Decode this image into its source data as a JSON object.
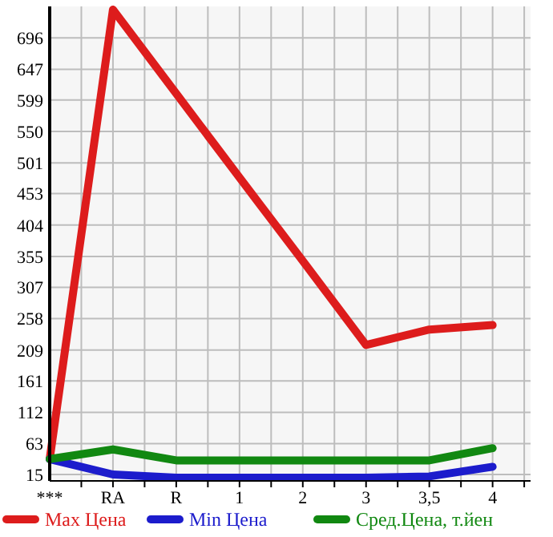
{
  "chart_data": {
    "type": "line",
    "categories": [
      "***",
      "RA",
      "R",
      "1",
      "2",
      "3",
      "3,5",
      "4"
    ],
    "series": [
      {
        "name": "Max Цена",
        "color": "#dd1c1c",
        "values": [
          39,
          740,
          609,
          478,
          348,
          217,
          241,
          248
        ]
      },
      {
        "name": "Min Цена",
        "color": "#1c1ccc",
        "values": [
          39,
          15,
          10,
          10,
          10,
          10,
          12,
          27
        ]
      },
      {
        "name": "Сред.Цена, т.йен",
        "color": "#118811",
        "values": [
          39,
          54,
          37,
          37,
          37,
          37,
          37,
          56
        ]
      }
    ],
    "ylim": [
      5,
      745
    ],
    "yticks": [
      15,
      63,
      112,
      161,
      209,
      258,
      307,
      355,
      404,
      453,
      501,
      550,
      599,
      647,
      696
    ],
    "grid": true,
    "legend": "bottom",
    "marker": "none",
    "line_style": "solid"
  }
}
